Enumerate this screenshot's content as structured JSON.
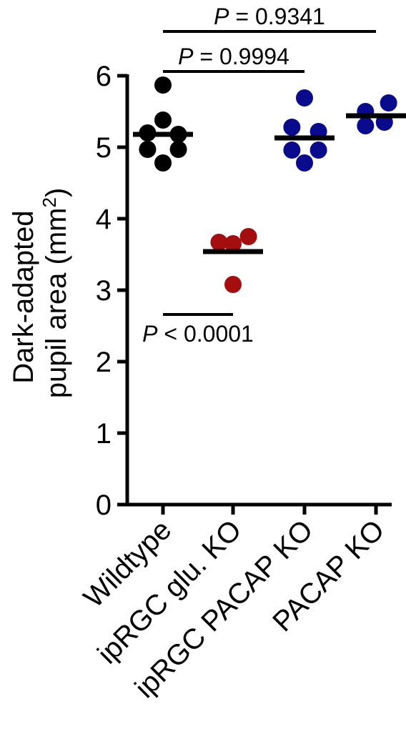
{
  "chart_data": {
    "type": "scatter",
    "title": "",
    "xlabel": "",
    "ylabel_lines": [
      "Dark-adapted",
      "pupil area (mm",
      "2",
      ")"
    ],
    "ylim": [
      0,
      6
    ],
    "yticks": [
      "0",
      "1",
      "2",
      "3",
      "4",
      "5",
      "6"
    ],
    "categories": [
      "Wildtype",
      "ipRGC glu. KO",
      "ipRGC PACAP KO",
      "PACAP KO"
    ],
    "series": [
      {
        "color": "#000000",
        "mean": 5.18,
        "points": [
          {
            "dx": 0.0,
            "y": 5.87
          },
          {
            "dx": 0.0,
            "y": 5.38
          },
          {
            "dx": -0.22,
            "y": 5.2
          },
          {
            "dx": 0.22,
            "y": 5.18
          },
          {
            "dx": -0.22,
            "y": 4.97
          },
          {
            "dx": 0.22,
            "y": 4.97
          },
          {
            "dx": 0.0,
            "y": 4.78
          }
        ]
      },
      {
        "color": "#a50e0e",
        "mean": 3.54,
        "points": [
          {
            "dx": -0.2,
            "y": 3.67
          },
          {
            "dx": 0.0,
            "y": 3.65
          },
          {
            "dx": 0.22,
            "y": 3.75
          },
          {
            "dx": 0.0,
            "y": 3.08
          }
        ]
      },
      {
        "color": "#0a0a8c",
        "mean": 5.13,
        "points": [
          {
            "dx": 0.0,
            "y": 5.69
          },
          {
            "dx": -0.18,
            "y": 5.28
          },
          {
            "dx": 0.2,
            "y": 5.22
          },
          {
            "dx": -0.18,
            "y": 4.96
          },
          {
            "dx": 0.2,
            "y": 4.96
          },
          {
            "dx": 0.0,
            "y": 4.78
          }
        ]
      },
      {
        "color": "#0a0a8c",
        "mean": 5.44,
        "points": [
          {
            "dx": -0.15,
            "y": 5.5
          },
          {
            "dx": 0.18,
            "y": 5.62
          },
          {
            "dx": -0.15,
            "y": 5.3
          },
          {
            "dx": 0.12,
            "y": 5.35
          }
        ]
      }
    ],
    "comparisons": [
      {
        "from": 0,
        "to": 3,
        "y": 6.62,
        "label_prefix": "P",
        "label_rest": " = 0.9341",
        "label_position": "above"
      },
      {
        "from": 0,
        "to": 2,
        "y": 6.06,
        "label_prefix": "P",
        "label_rest": " = 0.9994",
        "label_position": "above"
      },
      {
        "from": 0,
        "to": 1,
        "y": 2.66,
        "label_prefix": "P",
        "label_rest": " < 0.0001",
        "label_position": "below"
      }
    ]
  }
}
